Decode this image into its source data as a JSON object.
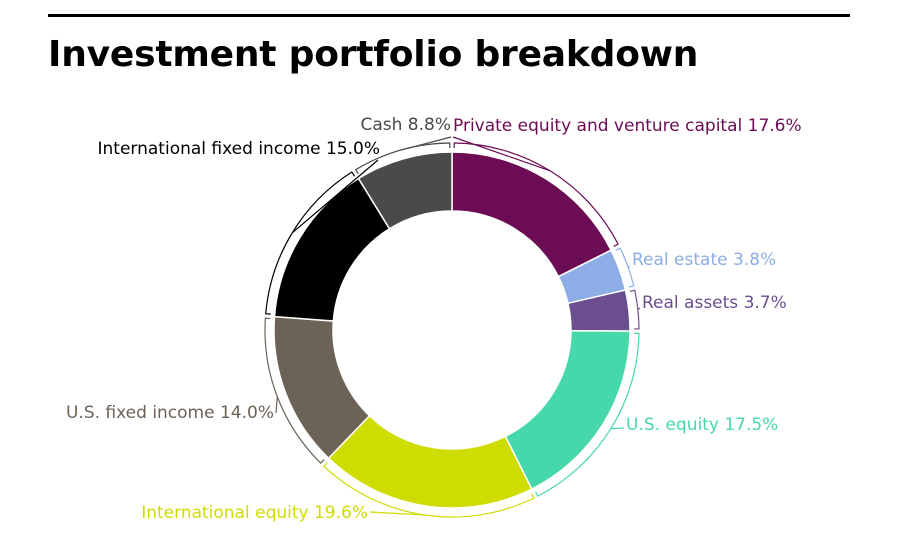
{
  "title": "Investment portfolio breakdown",
  "chart_data": {
    "type": "pie",
    "donut": true,
    "slices": [
      {
        "label": "Private equity and venture capital",
        "value": 17.6,
        "display": "Private equity and venture capital 17.6%",
        "color": "#6c0c55"
      },
      {
        "label": "Real estate",
        "value": 3.8,
        "display": "Real estate 3.8%",
        "color": "#8cade6"
      },
      {
        "label": "Real assets",
        "value": 3.7,
        "display": "Real assets 3.7%",
        "color": "#6b4e90"
      },
      {
        "label": "U.S. equity",
        "value": 17.5,
        "display": "U.S. equity 17.5%",
        "color": "#46d8ab"
      },
      {
        "label": "International equity",
        "value": 19.6,
        "display": "International equity 19.6%",
        "color": "#cfdc00"
      },
      {
        "label": "U.S. fixed income",
        "value": 14.0,
        "display": "U.S. fixed income 14.0%",
        "color": "#6d6256"
      },
      {
        "label": "International fixed income",
        "value": 15.0,
        "display": "International fixed income 15.0%",
        "color": "#000000"
      },
      {
        "label": "Cash",
        "value": 8.8,
        "display": "Cash 8.8%",
        "color": "#4a4a4a"
      }
    ]
  }
}
